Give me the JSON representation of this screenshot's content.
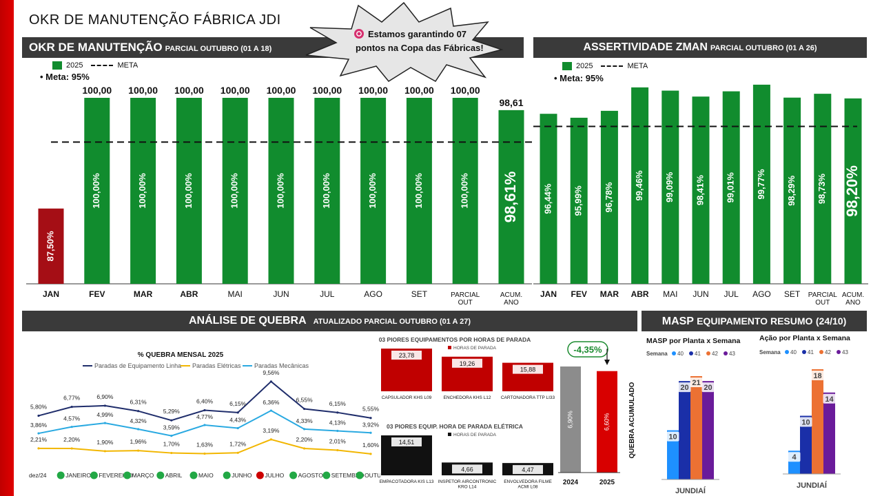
{
  "page_title": "OKR DE MANUTENÇÃO FÁBRICA JDI",
  "callout": {
    "text1": "Estamos garantindo 07",
    "text2": "pontos na Copa das Fábricas!"
  },
  "okr": {
    "title": "OKR DE MANUTENÇÃO",
    "subtitle": "PARCIAL OUTUBRO (01 A 18)",
    "legend_series": "2025",
    "legend_meta": "META",
    "meta_note": "Meta: 95%"
  },
  "zman": {
    "title": "ASSERTIVIDADE ZMAN",
    "subtitle": "PARCIAL OUTUBRO (01 A 26)",
    "legend_series": "2025",
    "legend_meta": "META",
    "meta_note": "Meta: 95%"
  },
  "quebra": {
    "title": "ANÁLISE DE QUEBRA",
    "subtitle": "ATUALIZADO PARCIAL OUTUBRO (01 A 27)"
  },
  "masp": {
    "title": "MASP",
    "title2": "EQUIPAMENTO RESUMO",
    "period": "(24/10)"
  },
  "chart_data": [
    {
      "id": "okr",
      "type": "bar",
      "categories": [
        "JAN",
        "FEV",
        "MAR",
        "ABR",
        "MAI",
        "JUN",
        "JUL",
        "AGO",
        "SET",
        "PARCIAL OUT",
        "ACUM. ANO"
      ],
      "values": [
        87.5,
        100,
        100,
        100,
        100,
        100,
        100,
        100,
        100,
        100,
        98.61
      ],
      "top_labels": [
        "",
        "100,00",
        "100,00",
        "100,00",
        "100,00",
        "100,00",
        "100,00",
        "100,00",
        "100,00",
        "100,00",
        "98,61"
      ],
      "inner_labels": [
        "87,50%",
        "100,00%",
        "100,00%",
        "100,00%",
        "100,00%",
        "100,00%",
        "100,00%",
        "100,00%",
        "100,00%",
        "100,00%",
        "98,61%"
      ],
      "meta": 95,
      "colors": {
        "bar": "#118c2e",
        "below": "#a50e15"
      }
    },
    {
      "id": "zman",
      "type": "bar",
      "categories": [
        "JAN",
        "FEV",
        "MAR",
        "ABR",
        "MAI",
        "JUN",
        "JUL",
        "AGO",
        "SET",
        "PARCIAL OUT",
        "ACUM. ANO"
      ],
      "values": [
        96.44,
        95.99,
        96.78,
        99.46,
        99.09,
        98.41,
        99.01,
        99.77,
        98.29,
        98.73,
        98.2
      ],
      "inner_labels": [
        "96,44%",
        "95,99%",
        "96,78%",
        "99,46%",
        "99,09%",
        "98,41%",
        "99,01%",
        "99,77%",
        "98,29%",
        "98,73%",
        "98,20%"
      ],
      "meta": 95,
      "colors": {
        "bar": "#118c2e"
      }
    },
    {
      "id": "quebra_mensal",
      "type": "line",
      "title": "% QUEBRA MENSAL 2025",
      "categories": [
        "dez/24",
        "JANEIRO",
        "FEVEREIRO",
        "MARÇO",
        "ABRIL",
        "MAIO",
        "JUNHO",
        "JULHO",
        "AGOSTO",
        "SETEMBRO",
        "OUTUBRO"
      ],
      "series": [
        {
          "name": "Paradas de Equipamento Linha",
          "color": "#1f2d6b",
          "values": [
            5.8,
            6.77,
            6.9,
            6.31,
            5.29,
            6.4,
            6.15,
            9.56,
            6.55,
            6.15,
            5.55
          ],
          "labels": [
            "5,80%",
            "6,77%",
            "6,90%",
            "6,31%",
            "5,29%",
            "6,40%",
            "6,15%",
            "9,56%",
            "6,55%",
            "6,15%",
            "5,55%"
          ]
        },
        {
          "name": "Paradas Elétricas",
          "color": "#f2b600",
          "values": [
            2.21,
            2.2,
            1.9,
            1.96,
            1.7,
            1.63,
            1.72,
            3.19,
            2.2,
            2.01,
            1.6
          ],
          "labels": [
            "2,21%",
            "2,20%",
            "1,90%",
            "1,96%",
            "1,70%",
            "1,63%",
            "1,72%",
            "3,19%",
            "2,20%",
            "2,01%",
            "1,60%"
          ]
        },
        {
          "name": "Paradas Mecânicas",
          "color": "#29a9e1",
          "values": [
            3.86,
            4.57,
            4.99,
            4.32,
            3.59,
            4.77,
            4.43,
            6.36,
            4.33,
            4.13,
            3.92
          ],
          "labels": [
            "3,86%",
            "4,57%",
            "4,99%",
            "4,32%",
            "3,59%",
            "4,77%",
            "4,43%",
            "6,36%",
            "4,33%",
            "4,13%",
            "3,92%"
          ]
        }
      ],
      "status": [
        "",
        "green",
        "green",
        "green",
        "green",
        "green",
        "green",
        "red",
        "green",
        "green",
        "green"
      ]
    },
    {
      "id": "piores_horas",
      "type": "bar",
      "title": "03 PIORES EQUIPAMENTOS POR HORAS DE PARADA",
      "legend": "HORAS DE PARADA",
      "categories": [
        "CAPSULADOR KHS L09",
        "ENCHEDORA KHS L12",
        "CARTONADORA TTP LI33"
      ],
      "values": [
        23.78,
        19.26,
        15.88
      ],
      "labels": [
        "23,78",
        "19,26",
        "15,88"
      ],
      "color": "#c00000"
    },
    {
      "id": "piores_eletrica",
      "type": "bar",
      "title": "03 PIORES EQUIP. HORA DE PARADA ELÉTRICA",
      "legend": "HORAS DE PARADA",
      "categories": [
        "EMPACOTADORA KIS L13",
        "INSPETOR AIRCONTRONIC KRO L14",
        "ENVOLVEDORA FILME ACMI L08"
      ],
      "values": [
        14.51,
        4.66,
        4.47
      ],
      "labels": [
        "14,51",
        "4,66",
        "4,47"
      ],
      "color": "#111111"
    },
    {
      "id": "quebra_acumulado",
      "type": "bar",
      "ylabel": "QUEBRA ACUMULADO",
      "categories": [
        "2024",
        "2025"
      ],
      "values": [
        6.9,
        6.6
      ],
      "labels": [
        "6,90%",
        "6,60%"
      ],
      "colors": [
        "#8c8c8c",
        "#d80000"
      ],
      "delta": "-4,35%"
    },
    {
      "id": "masp_planta",
      "type": "bar",
      "title": "MASP por Planta x Semana",
      "legend_title": "Semana",
      "categories": [
        "JUNDIAÍ"
      ],
      "series": [
        {
          "name": "40",
          "color": "#1e90ff",
          "values": [
            10
          ]
        },
        {
          "name": "41",
          "color": "#1a2fa8",
          "values": [
            20
          ]
        },
        {
          "name": "42",
          "color": "#ec7133",
          "values": [
            21
          ]
        },
        {
          "name": "43",
          "color": "#6a1b9a",
          "values": [
            20
          ]
        }
      ]
    },
    {
      "id": "acao_planta",
      "type": "bar",
      "title": "Ação por Planta x Semana",
      "legend_title": "Semana",
      "categories": [
        "JUNDIAÍ"
      ],
      "series": [
        {
          "name": "40",
          "color": "#1e90ff",
          "values": [
            4
          ]
        },
        {
          "name": "41",
          "color": "#1a2fa8",
          "values": [
            10
          ]
        },
        {
          "name": "42",
          "color": "#ec7133",
          "values": [
            18
          ]
        },
        {
          "name": "43",
          "color": "#6a1b9a",
          "values": [
            14
          ]
        }
      ]
    }
  ]
}
